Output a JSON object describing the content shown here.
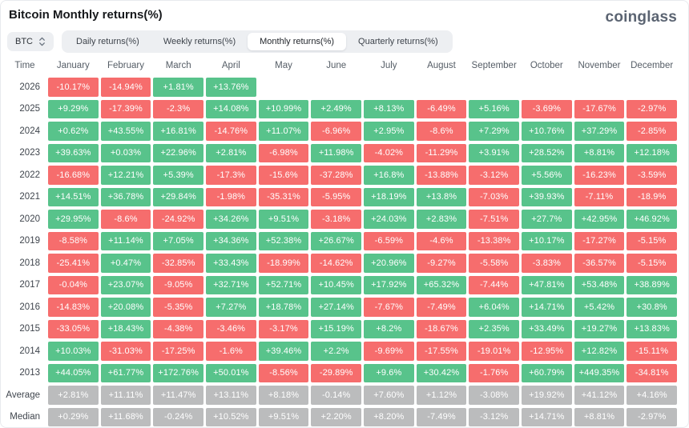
{
  "page": {
    "title": "Bitcoin Monthly returns(%)",
    "logo": "coinglass"
  },
  "controls": {
    "coin_selector": {
      "label": "BTC",
      "icon": "updown-chevron-icon"
    },
    "tabs": [
      {
        "label": "Daily returns(%)",
        "active": false
      },
      {
        "label": "Weekly returns(%)",
        "active": false
      },
      {
        "label": "Monthly returns(%)",
        "active": true
      },
      {
        "label": "Quarterly returns(%)",
        "active": false
      }
    ]
  },
  "colors": {
    "positive": "#58c38b",
    "negative": "#f66d6d",
    "summary": "#bbbcbd"
  },
  "table": {
    "time_header": "Time",
    "months": [
      "January",
      "February",
      "March",
      "April",
      "May",
      "June",
      "July",
      "August",
      "September",
      "October",
      "November",
      "December"
    ],
    "rows": [
      {
        "label": "2026",
        "type": "year",
        "cells": [
          "-10.17%",
          "-14.94%",
          "+1.81%",
          "+13.76%",
          "",
          "",
          "",
          "",
          "",
          "",
          "",
          ""
        ]
      },
      {
        "label": "2025",
        "type": "year",
        "cells": [
          "+9.29%",
          "-17.39%",
          "-2.3%",
          "+14.08%",
          "+10.99%",
          "+2.49%",
          "+8.13%",
          "-6.49%",
          "+5.16%",
          "-3.69%",
          "-17.67%",
          "-2.97%"
        ]
      },
      {
        "label": "2024",
        "type": "year",
        "cells": [
          "+0.62%",
          "+43.55%",
          "+16.81%",
          "-14.76%",
          "+11.07%",
          "-6.96%",
          "+2.95%",
          "-8.6%",
          "+7.29%",
          "+10.76%",
          "+37.29%",
          "-2.85%"
        ]
      },
      {
        "label": "2023",
        "type": "year",
        "cells": [
          "+39.63%",
          "+0.03%",
          "+22.96%",
          "+2.81%",
          "-6.98%",
          "+11.98%",
          "-4.02%",
          "-11.29%",
          "+3.91%",
          "+28.52%",
          "+8.81%",
          "+12.18%"
        ]
      },
      {
        "label": "2022",
        "type": "year",
        "cells": [
          "-16.68%",
          "+12.21%",
          "+5.39%",
          "-17.3%",
          "-15.6%",
          "-37.28%",
          "+16.8%",
          "-13.88%",
          "-3.12%",
          "+5.56%",
          "-16.23%",
          "-3.59%"
        ]
      },
      {
        "label": "2021",
        "type": "year",
        "cells": [
          "+14.51%",
          "+36.78%",
          "+29.84%",
          "-1.98%",
          "-35.31%",
          "-5.95%",
          "+18.19%",
          "+13.8%",
          "-7.03%",
          "+39.93%",
          "-7.11%",
          "-18.9%"
        ]
      },
      {
        "label": "2020",
        "type": "year",
        "cells": [
          "+29.95%",
          "-8.6%",
          "-24.92%",
          "+34.26%",
          "+9.51%",
          "-3.18%",
          "+24.03%",
          "+2.83%",
          "-7.51%",
          "+27.7%",
          "+42.95%",
          "+46.92%"
        ]
      },
      {
        "label": "2019",
        "type": "year",
        "cells": [
          "-8.58%",
          "+11.14%",
          "+7.05%",
          "+34.36%",
          "+52.38%",
          "+26.67%",
          "-6.59%",
          "-4.6%",
          "-13.38%",
          "+10.17%",
          "-17.27%",
          "-5.15%"
        ]
      },
      {
        "label": "2018",
        "type": "year",
        "cells": [
          "-25.41%",
          "+0.47%",
          "-32.85%",
          "+33.43%",
          "-18.99%",
          "-14.62%",
          "+20.96%",
          "-9.27%",
          "-5.58%",
          "-3.83%",
          "-36.57%",
          "-5.15%"
        ]
      },
      {
        "label": "2017",
        "type": "year",
        "cells": [
          "-0.04%",
          "+23.07%",
          "-9.05%",
          "+32.71%",
          "+52.71%",
          "+10.45%",
          "+17.92%",
          "+65.32%",
          "-7.44%",
          "+47.81%",
          "+53.48%",
          "+38.89%"
        ]
      },
      {
        "label": "2016",
        "type": "year",
        "cells": [
          "-14.83%",
          "+20.08%",
          "-5.35%",
          "+7.27%",
          "+18.78%",
          "+27.14%",
          "-7.67%",
          "-7.49%",
          "+6.04%",
          "+14.71%",
          "+5.42%",
          "+30.8%"
        ]
      },
      {
        "label": "2015",
        "type": "year",
        "cells": [
          "-33.05%",
          "+18.43%",
          "-4.38%",
          "-3.46%",
          "-3.17%",
          "+15.19%",
          "+8.2%",
          "-18.67%",
          "+2.35%",
          "+33.49%",
          "+19.27%",
          "+13.83%"
        ]
      },
      {
        "label": "2014",
        "type": "year",
        "cells": [
          "+10.03%",
          "-31.03%",
          "-17.25%",
          "-1.6%",
          "+39.46%",
          "+2.2%",
          "-9.69%",
          "-17.55%",
          "-19.01%",
          "-12.95%",
          "+12.82%",
          "-15.11%"
        ]
      },
      {
        "label": "2013",
        "type": "year",
        "cells": [
          "+44.05%",
          "+61.77%",
          "+172.76%",
          "+50.01%",
          "-8.56%",
          "-29.89%",
          "+9.6%",
          "+30.42%",
          "-1.76%",
          "+60.79%",
          "+449.35%",
          "-34.81%"
        ]
      },
      {
        "label": "Average",
        "type": "summary",
        "cells": [
          "+2.81%",
          "+11.11%",
          "+11.47%",
          "+13.11%",
          "+8.18%",
          "-0.14%",
          "+7.60%",
          "+1.12%",
          "-3.08%",
          "+19.92%",
          "+41.12%",
          "+4.16%"
        ]
      },
      {
        "label": "Median",
        "type": "summary",
        "cells": [
          "+0.29%",
          "+11.68%",
          "-0.24%",
          "+10.52%",
          "+9.51%",
          "+2.20%",
          "+8.20%",
          "-7.49%",
          "-3.12%",
          "+14.71%",
          "+8.81%",
          "-2.97%"
        ]
      }
    ]
  }
}
